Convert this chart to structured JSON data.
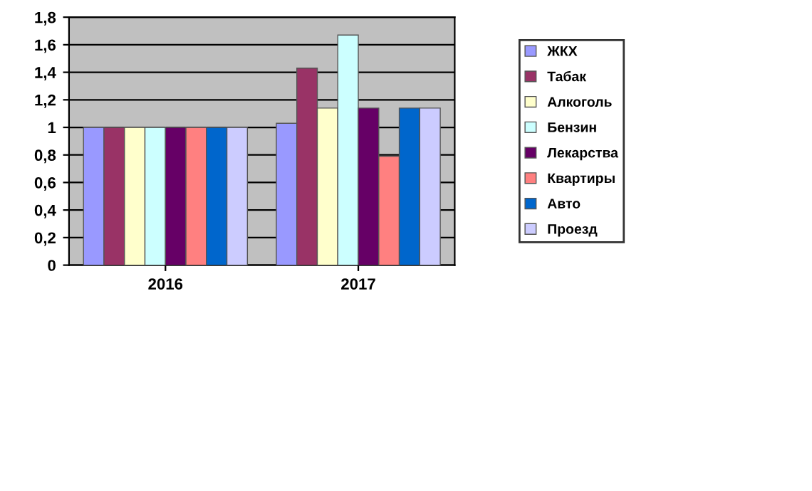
{
  "chart_data": {
    "type": "bar",
    "categories": [
      "2016",
      "2017"
    ],
    "series": [
      {
        "name": "ЖКХ",
        "color": "#9999ff",
        "values": [
          1,
          1.03
        ]
      },
      {
        "name": "Табак",
        "color": "#993366",
        "values": [
          1,
          1.43
        ]
      },
      {
        "name": "Алкоголь",
        "color": "#ffffcc",
        "values": [
          1,
          1.14
        ]
      },
      {
        "name": "Бензин",
        "color": "#ccffff",
        "values": [
          1,
          1.67
        ]
      },
      {
        "name": "Лекарства",
        "color": "#660066",
        "values": [
          1,
          1.14
        ]
      },
      {
        "name": "Квартиры",
        "color": "#ff8080",
        "values": [
          1,
          0.79
        ]
      },
      {
        "name": "Авто",
        "color": "#0066cc",
        "values": [
          1,
          1.14
        ]
      },
      {
        "name": "Проезд",
        "color": "#ccccff",
        "values": [
          1,
          1.14
        ]
      }
    ],
    "ylim": [
      0,
      1.8
    ],
    "yticks": [
      {
        "value": 0,
        "label": "0"
      },
      {
        "value": 0.2,
        "label": "0,2"
      },
      {
        "value": 0.4,
        "label": "0,4"
      },
      {
        "value": 0.6,
        "label": "0,6"
      },
      {
        "value": 0.8,
        "label": "0,8"
      },
      {
        "value": 1,
        "label": "1"
      },
      {
        "value": 1.2,
        "label": "1,2"
      },
      {
        "value": 1.4,
        "label": "1,4"
      },
      {
        "value": 1.6,
        "label": "1,6"
      },
      {
        "value": 1.8,
        "label": "1,8"
      }
    ],
    "grid": "y",
    "legend": "right"
  }
}
